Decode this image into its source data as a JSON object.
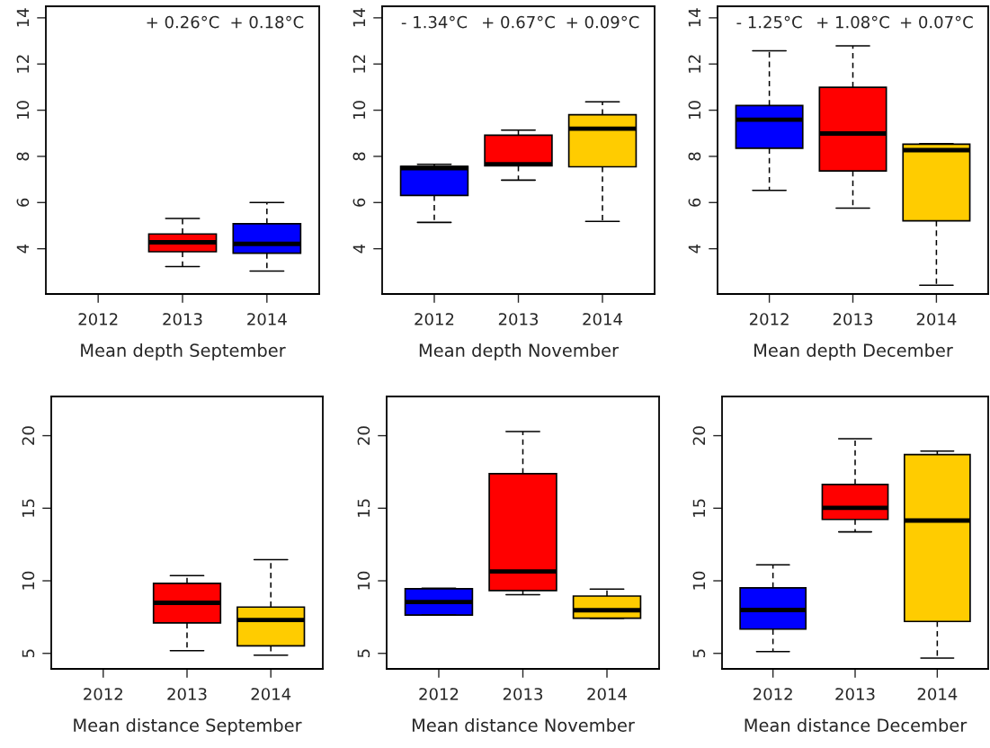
{
  "chart_data": [
    {
      "type": "box",
      "xlabel": "Mean depth September",
      "categories": [
        "2012",
        "2013",
        "2014"
      ],
      "ylim": [
        2.04,
        14.5
      ],
      "yticks": [
        4,
        6,
        8,
        10,
        12,
        14
      ],
      "colors": [
        null,
        "#ff0000",
        "#0000ff"
      ],
      "boxes": [
        null,
        {
          "low": 3.23,
          "q1": 3.87,
          "median": 4.28,
          "q3": 4.64,
          "high": 5.31
        },
        {
          "low": 3.03,
          "q1": 3.81,
          "median": 4.21,
          "q3": 5.08,
          "high": 6.0
        }
      ],
      "annotations": [
        "+ 0.26°C",
        "+ 0.18°C"
      ]
    },
    {
      "type": "box",
      "xlabel": "Mean depth November",
      "categories": [
        "2012",
        "2013",
        "2014"
      ],
      "ylim": [
        2.04,
        14.5
      ],
      "yticks": [
        4,
        6,
        8,
        10,
        12,
        14
      ],
      "colors": [
        "#0000ff",
        "#ff0000",
        "#ffcc00"
      ],
      "boxes": [
        {
          "low": 5.14,
          "q1": 6.31,
          "median": 7.49,
          "q3": 7.57,
          "high": 7.66
        },
        {
          "low": 6.97,
          "q1": 7.59,
          "median": 7.66,
          "q3": 8.92,
          "high": 9.14
        },
        {
          "low": 5.18,
          "q1": 7.55,
          "median": 9.2,
          "q3": 9.8,
          "high": 10.36
        }
      ],
      "annotations": [
        "- 1.34°C",
        "+ 0.67°C",
        "+ 0.09°C"
      ]
    },
    {
      "type": "box",
      "xlabel": "Mean depth December",
      "categories": [
        "2012",
        "2013",
        "2014"
      ],
      "ylim": [
        2.04,
        14.5
      ],
      "yticks": [
        4,
        6,
        8,
        10,
        12,
        14
      ],
      "colors": [
        "#0000ff",
        "#ff0000",
        "#ffcc00"
      ],
      "boxes": [
        {
          "low": 6.53,
          "q1": 8.35,
          "median": 9.59,
          "q3": 10.2,
          "high": 12.57
        },
        {
          "low": 5.76,
          "q1": 7.37,
          "median": 8.99,
          "q3": 10.99,
          "high": 12.79
        },
        {
          "low": 2.42,
          "q1": 5.21,
          "median": 8.27,
          "q3": 8.53,
          "high": 8.55
        }
      ],
      "annotations": [
        "- 1.25°C",
        "+ 1.08°C",
        "+ 0.07°C"
      ]
    },
    {
      "type": "box",
      "xlabel": "Mean distance September",
      "categories": [
        "2012",
        "2013",
        "2014"
      ],
      "ylim": [
        3.93,
        22.7
      ],
      "yticks": [
        5,
        10,
        15,
        20
      ],
      "colors": [
        null,
        "#ff0000",
        "#ffcc00"
      ],
      "boxes": [
        null,
        {
          "low": 5.18,
          "q1": 7.1,
          "median": 8.48,
          "q3": 9.82,
          "high": 10.36
        },
        {
          "low": 4.88,
          "q1": 5.52,
          "median": 7.3,
          "q3": 8.19,
          "high": 11.45
        }
      ]
    },
    {
      "type": "box",
      "xlabel": "Mean distance November",
      "categories": [
        "2012",
        "2013",
        "2014"
      ],
      "ylim": [
        3.93,
        22.7
      ],
      "yticks": [
        5,
        10,
        15,
        20
      ],
      "colors": [
        "#0000ff",
        "#ff0000",
        "#ffcc00"
      ],
      "boxes": [
        {
          "low": 7.64,
          "q1": 7.64,
          "median": 8.54,
          "q3": 9.45,
          "high": 9.49
        },
        {
          "low": 9.04,
          "q1": 9.33,
          "median": 10.64,
          "q3": 17.38,
          "high": 20.29
        },
        {
          "low": 7.42,
          "q1": 7.42,
          "median": 7.97,
          "q3": 8.95,
          "high": 9.43
        }
      ]
    },
    {
      "type": "box",
      "xlabel": "Mean distance December",
      "categories": [
        "2012",
        "2013",
        "2014"
      ],
      "ylim": [
        3.93,
        22.7
      ],
      "yticks": [
        5,
        10,
        15,
        20
      ],
      "colors": [
        "#0000ff",
        "#ff0000",
        "#ffcc00"
      ],
      "boxes": [
        {
          "low": 5.12,
          "q1": 6.67,
          "median": 7.99,
          "q3": 9.51,
          "high": 11.1
        },
        {
          "low": 13.37,
          "q1": 14.23,
          "median": 15.03,
          "q3": 16.64,
          "high": 19.79
        },
        {
          "low": 4.67,
          "q1": 7.2,
          "median": 14.15,
          "q3": 18.7,
          "high": 18.93
        }
      ]
    }
  ]
}
